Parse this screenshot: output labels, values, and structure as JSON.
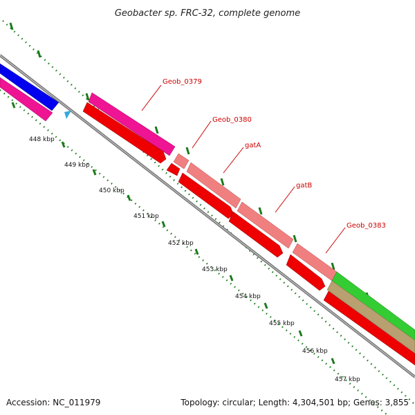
{
  "title": "Geobacter sp. FRC-32, complete genome",
  "footer": {
    "accession": "Accession: NC_011979",
    "summary": "Topology: circular; Length: 4,304,501 bp; Genes: 3,855"
  },
  "kbp_labels": [
    "448 kbp",
    "449 kbp",
    "450 kbp",
    "451 kbp",
    "452 kbp",
    "453 kbp",
    "454 kbp",
    "455 kbp",
    "456 kbp",
    "457 kbp"
  ],
  "gene_labels": [
    "Geob_0379",
    "Geob_0380",
    "gatA",
    "gatB",
    "Geob_0383"
  ],
  "colors": {
    "backbone": "#8a8a8a",
    "blue_track": "#0000ee",
    "magenta_track": "#ee1493",
    "red_track": "#ee0000",
    "pink_track": "#f08080",
    "green_track": "#33cc33",
    "olive_track": "#b8a070",
    "tick_green": "#1a7a1a",
    "label_red": "#cc0000",
    "cyan_marker": "#33aadd"
  }
}
